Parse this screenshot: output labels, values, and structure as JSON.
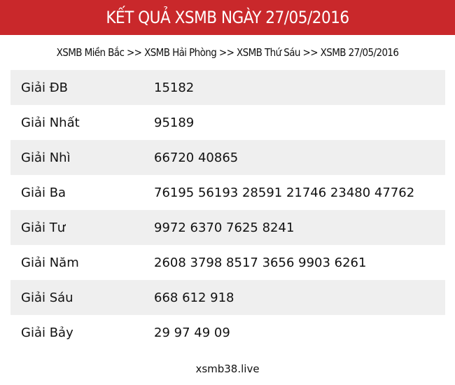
{
  "header": {
    "title": "KẾT QUẢ XSMB NGÀY 27/05/2016"
  },
  "breadcrumb": {
    "items": [
      "XSMB Miền Bắc",
      "XSMB Hải Phòng",
      "XSMB Thứ Sáu",
      "XSMB 27/05/2016"
    ],
    "separator": ">>"
  },
  "results": [
    {
      "label": "Giải ĐB",
      "value": "15182"
    },
    {
      "label": "Giải Nhất",
      "value": "95189"
    },
    {
      "label": "Giải Nhì",
      "value": "66720 40865"
    },
    {
      "label": "Giải Ba",
      "value": "76195 56193 28591 21746 23480 47762"
    },
    {
      "label": "Giải Tư",
      "value": "9972 6370 7625 8241"
    },
    {
      "label": "Giải Năm",
      "value": "2608 3798 8517 3656 9903 6261"
    },
    {
      "label": "Giải Sáu",
      "value": "668 612 918"
    },
    {
      "label": "Giải Bảy",
      "value": "29 97 49 09"
    }
  ],
  "footer": {
    "text": "xsmb38.live"
  },
  "colors": {
    "header_bg": "#c9282b",
    "row_alt": "#efefef"
  }
}
